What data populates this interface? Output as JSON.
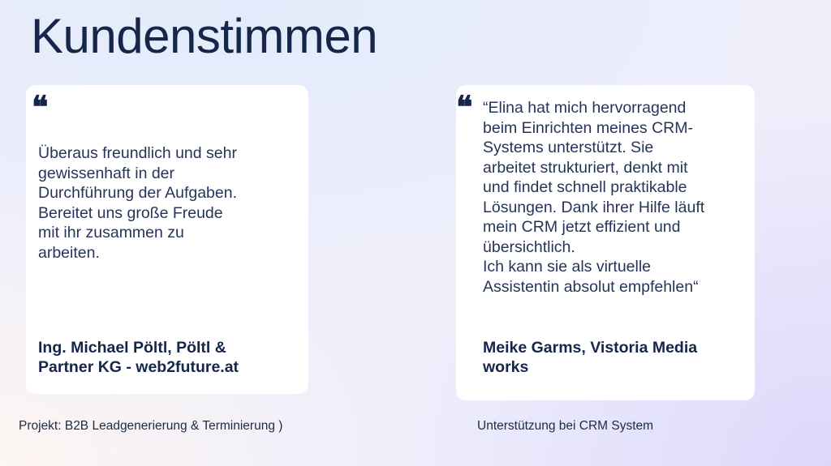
{
  "title": "Kundenstimmen",
  "testimonials": [
    {
      "quote_icon": "quote-open-icon",
      "quote_lines": [
        "Überaus freundlich und sehr",
        "gewissenhaft in der",
        "Durchführung der Aufgaben.",
        "Bereitet uns große Freude",
        "mit ihr zusammen zu",
        "arbeiten."
      ],
      "author_lines": [
        "Ing. Michael Pöltl, Pöltl &",
        "Partner KG - web2future.at"
      ],
      "caption": "Projekt: B2B Leadgenerierung & Terminierung )"
    },
    {
      "quote_icon": "quote-open-icon",
      "quote_lines": [
        "“Elina hat mich hervorragend",
        "beim Einrichten meines CRM-",
        "Systems unterstützt. Sie",
        "arbeitet strukturiert, denkt mit",
        "und findet schnell praktikable",
        "Lösungen. Dank ihrer Hilfe läuft",
        "mein CRM jetzt effizient und",
        "übersichtlich.",
        "Ich kann sie als virtuelle",
        "Assistentin absolut empfehlen“"
      ],
      "author_lines": [
        "Meike Garms, Vistoria Media",
        "works"
      ],
      "caption": "Unterstützung bei CRM System"
    }
  ],
  "quote_glyph": "❝",
  "colors": {
    "text": "#15264a",
    "card": "#ffffff"
  }
}
